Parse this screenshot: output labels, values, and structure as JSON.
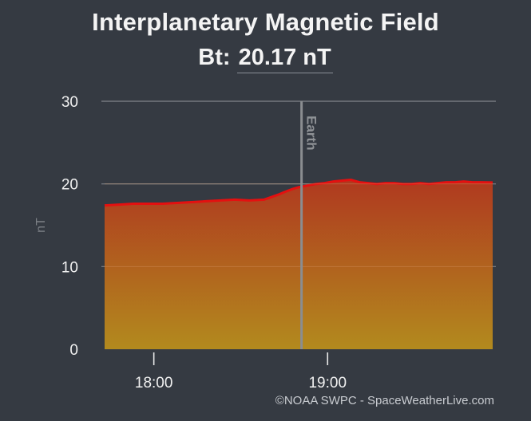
{
  "header": {
    "title": "Interplanetary Magnetic Field",
    "bt_label": "Bt:",
    "bt_value": "20.17",
    "bt_unit": "nT"
  },
  "credit": "©NOAA SWPC - SpaceWeatherLive.com",
  "colors": {
    "background": "#353a42",
    "line": "#e41010",
    "fill_top": "#b0391f",
    "fill_bottom": "#b28a1e",
    "gridline": "#80848a",
    "earth_marker": "#8a8d90"
  },
  "chart_data": {
    "type": "area",
    "title": "Interplanetary Magnetic Field",
    "ylabel": "nT",
    "xlabel": "",
    "ylim": [
      0,
      30
    ],
    "yticks": [
      0,
      10,
      20,
      30
    ],
    "xlim": [
      "17:43",
      "19:57"
    ],
    "xticks": [
      {
        "value": "18:00",
        "label": "18:00"
      },
      {
        "value": "19:00",
        "label": "19:00"
      }
    ],
    "grid": true,
    "marker": {
      "label": "Earth",
      "x": "18:51"
    },
    "series": [
      {
        "x": [
          "17:43",
          "17:48",
          "17:53",
          "17:58",
          "18:03",
          "18:08",
          "18:13",
          "18:18",
          "18:23",
          "18:28",
          "18:33",
          "18:38",
          "18:43",
          "18:45",
          "18:48",
          "18:50",
          "18:53",
          "18:56",
          "18:59",
          "19:02",
          "19:05",
          "19:08",
          "19:11",
          "19:14",
          "19:17",
          "19:20",
          "19:23",
          "19:26",
          "19:29",
          "19:32",
          "19:35",
          "19:38",
          "19:41",
          "19:44",
          "19:47",
          "19:50",
          "19:53",
          "19:57"
        ],
        "values": [
          17.4,
          17.5,
          17.6,
          17.6,
          17.6,
          17.7,
          17.8,
          17.9,
          18.0,
          18.1,
          18.0,
          18.1,
          18.7,
          19.0,
          19.4,
          19.6,
          19.8,
          20.0,
          20.1,
          20.3,
          20.4,
          20.5,
          20.2,
          20.1,
          20.0,
          20.1,
          20.1,
          20.0,
          20.0,
          20.1,
          20.0,
          20.1,
          20.2,
          20.2,
          20.3,
          20.2,
          20.2,
          20.17
        ]
      }
    ]
  }
}
